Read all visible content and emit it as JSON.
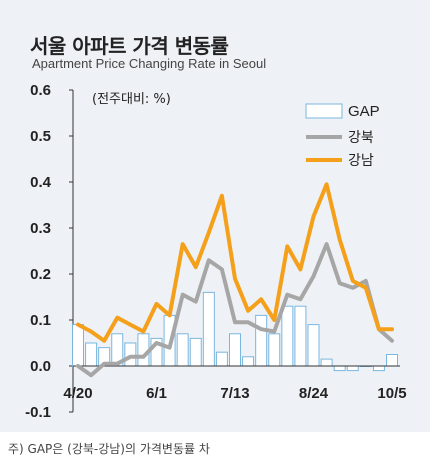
{
  "header": {
    "title": "서울 아파트 가격 변동률",
    "subtitle": "Apartment Price Changing Rate in Seoul"
  },
  "footnote": "주) GAP은 (강북-강남)의 가격변동률 차",
  "chart_data": {
    "type": "bar+line",
    "unit_label": "(전주대비: %)",
    "ylim": [
      -0.1,
      0.6
    ],
    "yticks": [
      -0.1,
      0.0,
      0.1,
      0.2,
      0.3,
      0.4,
      0.5,
      0.6
    ],
    "ytick_labels": [
      "-0.1",
      "0.0",
      "0.1",
      "0.2",
      "0.3",
      "0.4",
      "0.5",
      "0.6"
    ],
    "xtick_labels": [
      {
        "label": "4/20",
        "index": 0
      },
      {
        "label": "6/1",
        "index": 6
      },
      {
        "label": "7/13",
        "index": 12
      },
      {
        "label": "8/24",
        "index": 18
      },
      {
        "label": "10/5",
        "index": 24
      }
    ],
    "n_points": 25,
    "series": [
      {
        "name": "GAP",
        "kind": "bar",
        "color": "#ffffff",
        "border": "#7ab7df",
        "values": [
          0.09,
          0.05,
          0.04,
          0.07,
          0.05,
          0.07,
          0.06,
          0.11,
          0.07,
          0.06,
          0.16,
          0.03,
          0.07,
          0.02,
          0.11,
          0.07,
          0.13,
          0.13,
          0.09,
          0.015,
          -0.01,
          -0.01,
          0.0,
          -0.01,
          0.025
        ]
      },
      {
        "name": "강북",
        "kind": "line",
        "color": "#a6a6a6",
        "values": [
          0.0,
          -0.02,
          0.005,
          0.005,
          0.02,
          0.02,
          0.05,
          0.04,
          0.155,
          0.14,
          0.23,
          0.21,
          0.095,
          0.095,
          0.08,
          0.075,
          0.155,
          0.145,
          0.195,
          0.265,
          0.18,
          0.17,
          0.185,
          0.08,
          0.055
        ]
      },
      {
        "name": "강남",
        "kind": "line",
        "color": "#f5a01a",
        "values": [
          0.09,
          0.075,
          0.055,
          0.105,
          0.09,
          0.075,
          0.135,
          0.11,
          0.265,
          0.215,
          0.29,
          0.37,
          0.19,
          0.12,
          0.145,
          0.1,
          0.26,
          0.21,
          0.325,
          0.395,
          0.275,
          0.185,
          0.17,
          0.08,
          0.08
        ]
      }
    ]
  }
}
